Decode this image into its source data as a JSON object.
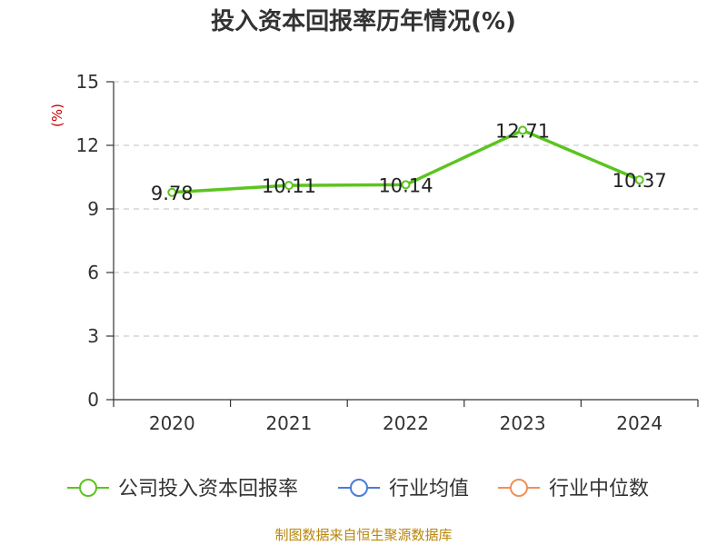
{
  "chart_data": {
    "type": "line",
    "title": "投入资本回报率历年情况(%)",
    "ylabel": "(%)",
    "xlabel": "",
    "categories": [
      "2020",
      "2021",
      "2022",
      "2023",
      "2024"
    ],
    "series": [
      {
        "name": "公司投入资本回报率",
        "values": [
          9.78,
          10.11,
          10.14,
          12.71,
          10.37
        ],
        "color": "#5cc41f"
      }
    ],
    "data_labels": [
      "9.78",
      "10.11",
      "10.14",
      "12.71",
      "10.37"
    ],
    "ylim": [
      0,
      15
    ],
    "yticks": [
      0,
      3,
      6,
      9,
      12,
      15
    ],
    "grid": true,
    "legend_position": "bottom",
    "legend": [
      {
        "label": "公司投入资本回报率",
        "color": "#5cc41f"
      },
      {
        "label": "行业均值",
        "color": "#4a7bd6"
      },
      {
        "label": "行业中位数",
        "color": "#f0905a"
      }
    ]
  },
  "source_text": "制图数据来自恒生聚源数据库"
}
